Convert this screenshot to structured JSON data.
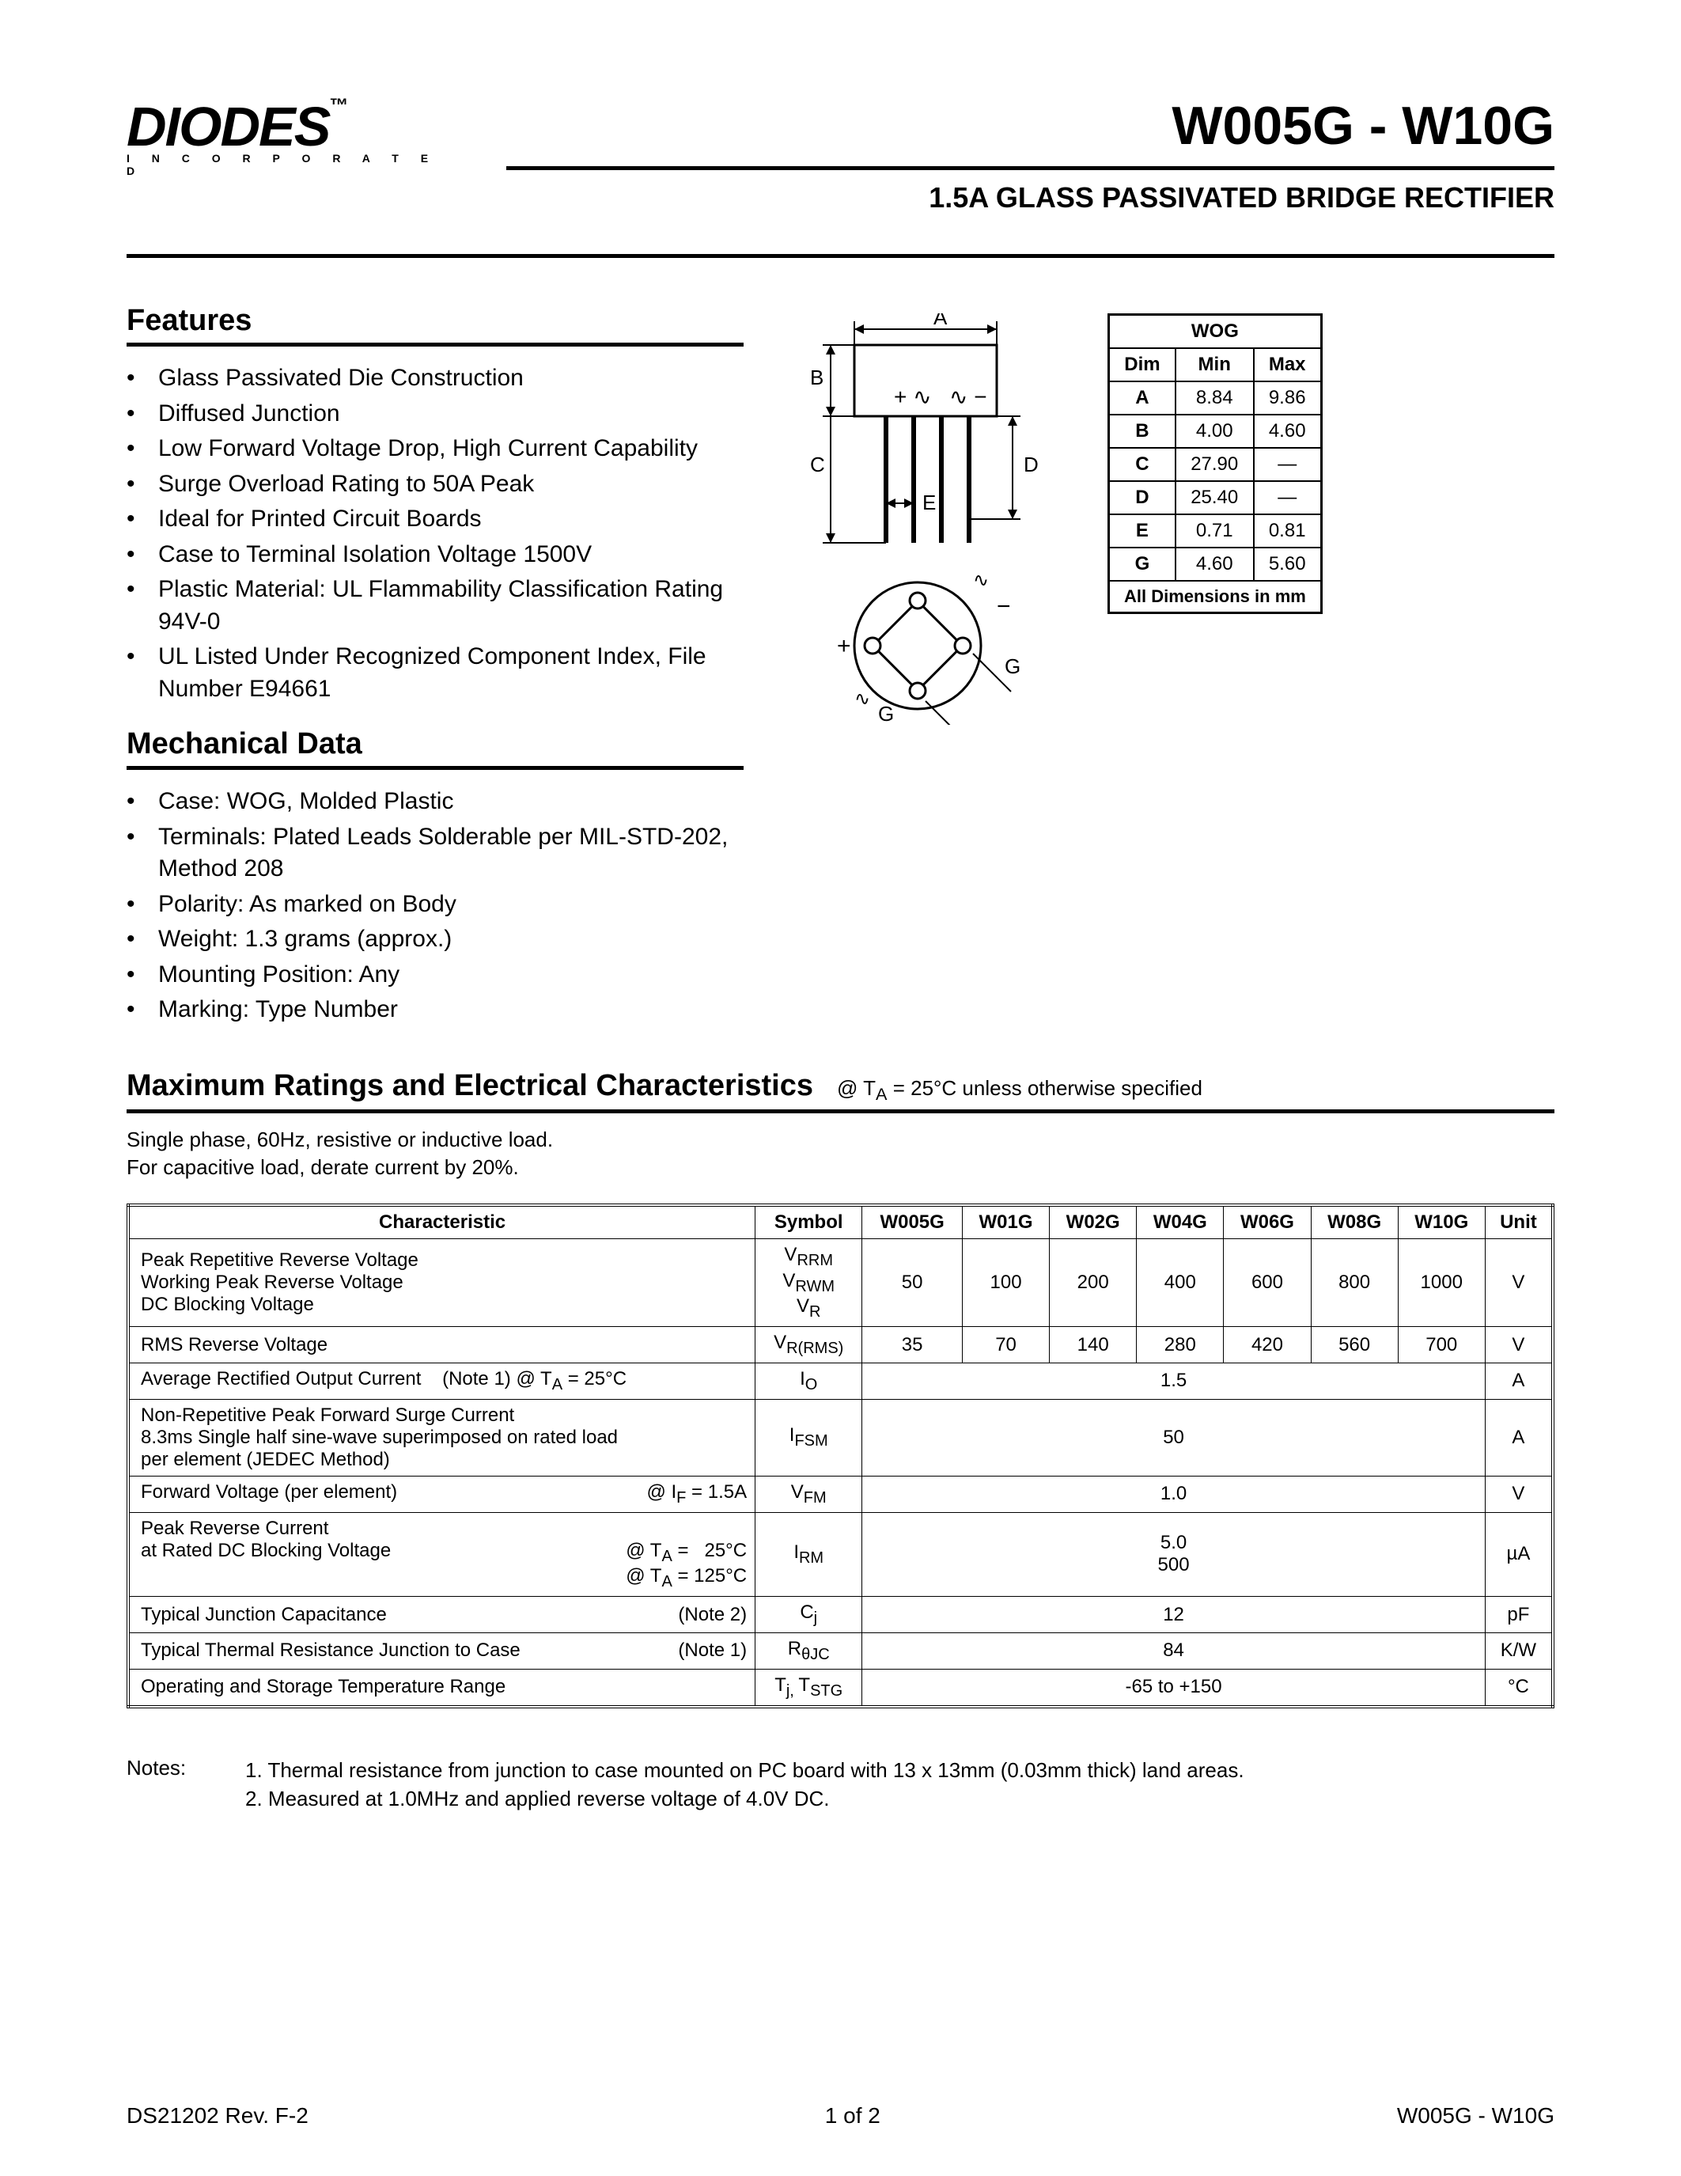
{
  "logo": {
    "main": "DIODES",
    "sub": "I N C O R P O R A T E D",
    "tm": "™"
  },
  "title": "W005G - W10G",
  "subtitle": "1.5A GLASS PASSIVATED BRIDGE RECTIFIER",
  "features_heading": "Features",
  "features": [
    "Glass Passivated Die Construction",
    "Diffused Junction",
    "Low Forward Voltage Drop, High Current Capability",
    "Surge Overload Rating to 50A Peak",
    "Ideal for Printed Circuit Boards",
    "Case to Terminal Isolation Voltage 1500V",
    "Plastic Material: UL Flammability Classification Rating 94V-0",
    "UL Listed Under Recognized Component Index, File Number E94661"
  ],
  "mech_heading": "Mechanical Data",
  "mech": [
    "Case: WOG, Molded Plastic",
    "Terminals: Plated Leads Solderable per MIL-STD-202, Method 208",
    "Polarity: As marked on Body",
    "Weight: 1.3 grams (approx.)",
    "Mounting Position: Any",
    "Marking: Type Number"
  ],
  "dim_table": {
    "title": "WOG",
    "headers": [
      "Dim",
      "Min",
      "Max"
    ],
    "rows": [
      [
        "A",
        "8.84",
        "9.86"
      ],
      [
        "B",
        "4.00",
        "4.60"
      ],
      [
        "C",
        "27.90",
        "—"
      ],
      [
        "D",
        "25.40",
        "—"
      ],
      [
        "E",
        "0.71",
        "0.81"
      ],
      [
        "G",
        "4.60",
        "5.60"
      ]
    ],
    "footer": "All Dimensions in mm"
  },
  "max_heading": "Maximum Ratings and Electrical Characteristics",
  "max_cond": "@ TA = 25°C unless otherwise specified",
  "load_note1": "Single phase, 60Hz, resistive or inductive load.",
  "load_note2": "For capacitive load, derate current by 20%.",
  "char_table": {
    "headers": [
      "Characteristic",
      "Symbol",
      "W005G",
      "W01G",
      "W02G",
      "W04G",
      "W06G",
      "W08G",
      "W10G",
      "Unit"
    ],
    "rows": [
      {
        "char": "Peak Repetitive Reverse Voltage<br>Working Peak Reverse Voltage<br>DC Blocking Voltage",
        "cond": "",
        "sym": "V<sub>RRM</sub><br>V<sub>RWM</sub><br>V<sub>R</sub>",
        "vals": [
          "50",
          "100",
          "200",
          "400",
          "600",
          "800",
          "1000"
        ],
        "unit": "V",
        "span": false
      },
      {
        "char": "RMS Reverse Voltage",
        "cond": "",
        "sym": "V<sub>R(RMS)</sub>",
        "vals": [
          "35",
          "70",
          "140",
          "280",
          "420",
          "560",
          "700"
        ],
        "unit": "V",
        "span": false
      },
      {
        "char": "Average Rectified Output Current&nbsp;&nbsp;&nbsp;&nbsp;(Note 1) @ T<sub>A</sub> = 25°C",
        "cond": "",
        "sym": "I<sub>O</sub>",
        "vals": [
          "1.5"
        ],
        "unit": "A",
        "span": true
      },
      {
        "char": "Non-Repetitive Peak Forward Surge Current<br>8.3ms Single half sine-wave superimposed on rated load<br>per element (JEDEC Method)",
        "cond": "",
        "sym": "I<sub>FSM</sub>",
        "vals": [
          "50"
        ],
        "unit": "A",
        "span": true
      },
      {
        "char": "Forward Voltage (per element)",
        "cond": "@ I<sub>F</sub> = 1.5A",
        "sym": "V<sub>FM</sub>",
        "vals": [
          "1.0"
        ],
        "unit": "V",
        "span": true
      },
      {
        "char": "Peak Reverse Current<br>at Rated DC Blocking Voltage",
        "cond": "@ T<sub>A</sub> = &nbsp;&nbsp;25°C<br>@ T<sub>A</sub> = 125°C",
        "sym": "I<sub>RM</sub>",
        "vals": [
          "5.0<br>500"
        ],
        "unit": "µA",
        "span": true
      },
      {
        "char": "Typical Junction Capacitance",
        "cond": "(Note 2)",
        "sym": "C<sub>j</sub>",
        "vals": [
          "12"
        ],
        "unit": "pF",
        "span": true
      },
      {
        "char": "Typical Thermal Resistance Junction to Case",
        "cond": "(Note 1)",
        "sym": "R<sub>θJC</sub>",
        "vals": [
          "84"
        ],
        "unit": "K/W",
        "span": true
      },
      {
        "char": "Operating and Storage Temperature Range",
        "cond": "",
        "sym": "T<sub>j, </sub>T<sub>STG</sub>",
        "vals": [
          "-65 to +150"
        ],
        "unit": "°C",
        "span": true
      }
    ]
  },
  "notes_label": "Notes:",
  "notes": [
    "1. Thermal resistance from junction to case mounted on PC board with 13 x 13mm (0.03mm thick) land areas.",
    "2. Measured at 1.0MHz and applied reverse voltage of 4.0V DC."
  ],
  "footer": {
    "left": "DS21202 Rev. F-2",
    "center": "1 of 2",
    "right": "W005G - W10G"
  },
  "diagram_labels": [
    "A",
    "B",
    "C",
    "D",
    "E",
    "G"
  ],
  "diagram_colors": {
    "line": "#000000",
    "fill": "#ffffff"
  }
}
